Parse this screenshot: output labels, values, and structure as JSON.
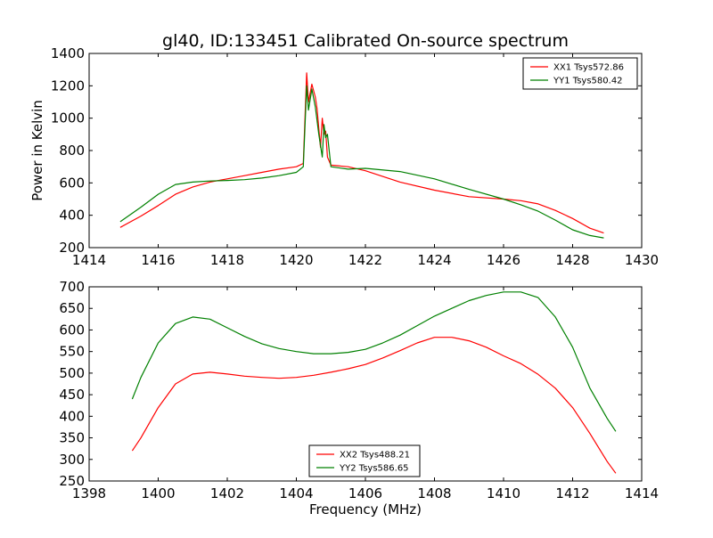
{
  "chart_data": [
    {
      "type": "line",
      "title": "gl40, ID:133451 Calibrated On-source spectrum",
      "xlabel": "",
      "ylabel": "Power in Kelvin",
      "xlim": [
        1414,
        1430
      ],
      "ylim": [
        200,
        1400
      ],
      "xticks": [
        1414,
        1416,
        1418,
        1420,
        1422,
        1424,
        1426,
        1428,
        1430
      ],
      "yticks": [
        200,
        400,
        600,
        800,
        1000,
        1200,
        1400
      ],
      "grid": false,
      "legend_position": "top-right",
      "series": [
        {
          "name": "XX1 Tsys572.86",
          "color": "#ff0000",
          "x": [
            1414.9,
            1415.5,
            1416.0,
            1416.5,
            1417.0,
            1417.5,
            1418.0,
            1418.5,
            1419.0,
            1419.5,
            1420.0,
            1420.2,
            1420.3,
            1420.35,
            1420.45,
            1420.55,
            1420.6,
            1420.7,
            1420.75,
            1420.8,
            1420.85,
            1420.9,
            1421.0,
            1421.5,
            1422.0,
            1423.0,
            1424.0,
            1425.0,
            1426.0,
            1426.5,
            1427.0,
            1427.5,
            1428.0,
            1428.5,
            1428.9
          ],
          "y": [
            325,
            395,
            460,
            530,
            575,
            605,
            625,
            645,
            665,
            685,
            700,
            720,
            1280,
            1100,
            1210,
            1130,
            1060,
            820,
            1000,
            900,
            920,
            760,
            710,
            700,
            675,
            605,
            555,
            515,
            500,
            490,
            470,
            430,
            380,
            320,
            290
          ]
        },
        {
          "name": "YY1 Tsys580.42",
          "color": "#008000",
          "x": [
            1414.9,
            1415.5,
            1416.0,
            1416.5,
            1417.0,
            1417.5,
            1418.0,
            1418.5,
            1419.0,
            1419.5,
            1420.0,
            1420.2,
            1420.3,
            1420.35,
            1420.45,
            1420.55,
            1420.65,
            1420.75,
            1420.8,
            1420.85,
            1420.9,
            1421.0,
            1421.5,
            1422.0,
            1423.0,
            1424.0,
            1425.0,
            1426.0,
            1426.5,
            1427.0,
            1427.5,
            1428.0,
            1428.5,
            1428.9
          ],
          "y": [
            360,
            450,
            530,
            590,
            605,
            612,
            615,
            620,
            630,
            645,
            665,
            700,
            1200,
            1050,
            1180,
            1070,
            900,
            760,
            960,
            880,
            900,
            700,
            685,
            690,
            670,
            625,
            560,
            500,
            465,
            425,
            370,
            310,
            275,
            260
          ]
        }
      ]
    },
    {
      "type": "line",
      "title": "",
      "xlabel": "Frequency (MHz)",
      "ylabel": "",
      "xlim": [
        1398,
        1414
      ],
      "ylim": [
        250,
        700
      ],
      "xticks": [
        1398,
        1400,
        1402,
        1404,
        1406,
        1408,
        1410,
        1412,
        1414
      ],
      "yticks": [
        250,
        300,
        350,
        400,
        450,
        500,
        550,
        600,
        650,
        700
      ],
      "grid": false,
      "legend_position": "bottom-center",
      "series": [
        {
          "name": "XX2 Tsys488.21",
          "color": "#ff0000",
          "x": [
            1399.25,
            1399.5,
            1400.0,
            1400.5,
            1401.0,
            1401.5,
            1402.0,
            1402.5,
            1403.0,
            1403.5,
            1404.0,
            1404.5,
            1405.0,
            1405.5,
            1406.0,
            1406.5,
            1407.0,
            1407.5,
            1408.0,
            1408.5,
            1409.0,
            1409.5,
            1410.0,
            1410.5,
            1411.0,
            1411.5,
            1412.0,
            1412.5,
            1413.0,
            1413.25
          ],
          "y": [
            320,
            350,
            420,
            475,
            498,
            502,
            498,
            493,
            490,
            488,
            490,
            495,
            502,
            510,
            520,
            535,
            552,
            570,
            583,
            583,
            575,
            560,
            540,
            522,
            497,
            465,
            420,
            360,
            295,
            268
          ]
        },
        {
          "name": "YY2 Tsys586.65",
          "color": "#008000",
          "x": [
            1399.25,
            1399.5,
            1400.0,
            1400.5,
            1401.0,
            1401.5,
            1402.0,
            1402.5,
            1403.0,
            1403.5,
            1404.0,
            1404.5,
            1405.0,
            1405.5,
            1406.0,
            1406.5,
            1407.0,
            1407.5,
            1408.0,
            1408.5,
            1409.0,
            1409.5,
            1410.0,
            1410.5,
            1411.0,
            1411.5,
            1412.0,
            1412.5,
            1413.0,
            1413.25
          ],
          "y": [
            440,
            490,
            570,
            615,
            630,
            625,
            605,
            585,
            568,
            557,
            550,
            545,
            545,
            548,
            555,
            570,
            588,
            610,
            632,
            650,
            668,
            680,
            688,
            688,
            675,
            630,
            560,
            465,
            395,
            365
          ]
        }
      ]
    }
  ]
}
